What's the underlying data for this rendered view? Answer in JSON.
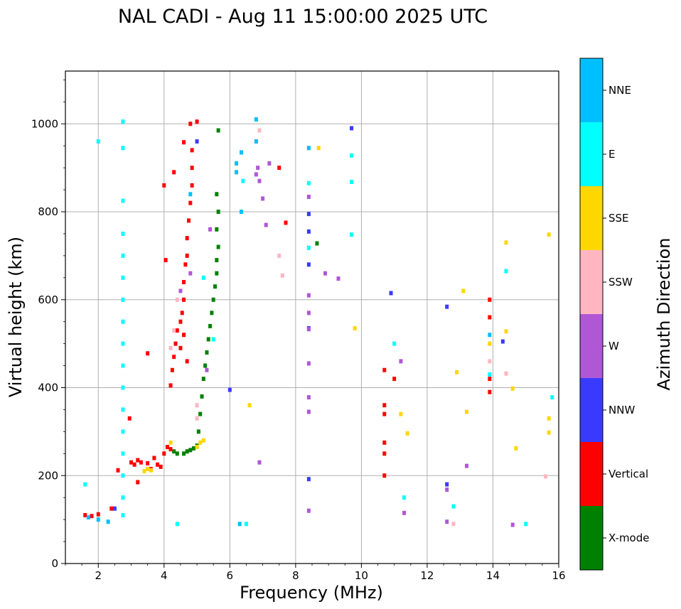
{
  "chart_data": {
    "type": "scatter",
    "title": "NAL CADI - Aug 11 15:00:00 2025 UTC",
    "xlabel": "Frequency (MHz)",
    "ylabel": "Virtual height (km)",
    "xlim": [
      1,
      16
    ],
    "ylim": [
      0,
      1120
    ],
    "xticks": [
      "2",
      "4",
      "6",
      "8",
      "10",
      "12",
      "14",
      "16"
    ],
    "xtick_values": [
      2,
      4,
      6,
      8,
      10,
      12,
      14,
      16
    ],
    "yticks": [
      "0",
      "200",
      "400",
      "600",
      "800",
      "1000"
    ],
    "ytick_values": [
      0,
      200,
      400,
      600,
      800,
      1000
    ],
    "grid": true,
    "colorbar": {
      "label": "Azimuth Direction",
      "categories": [
        {
          "name": "X-mode",
          "color": "#008000"
        },
        {
          "name": "Vertical",
          "color": "#ff0000"
        },
        {
          "name": "NNW",
          "color": "#3a3aff"
        },
        {
          "name": "W",
          "color": "#b057d6"
        },
        {
          "name": "SSW",
          "color": "#ffb6c1"
        },
        {
          "name": "SSE",
          "color": "#ffd700"
        },
        {
          "name": "E",
          "color": "#00ffff"
        },
        {
          "name": "NNE",
          "color": "#00bfff"
        }
      ]
    },
    "series": [
      {
        "name": "X-mode",
        "points": [
          [
            4.6,
            250
          ],
          [
            4.7,
            255
          ],
          [
            4.8,
            258
          ],
          [
            4.9,
            262
          ],
          [
            5.0,
            268
          ],
          [
            5.05,
            300
          ],
          [
            5.1,
            340
          ],
          [
            5.15,
            380
          ],
          [
            5.2,
            420
          ],
          [
            5.25,
            450
          ],
          [
            5.3,
            480
          ],
          [
            5.35,
            510
          ],
          [
            5.4,
            540
          ],
          [
            5.45,
            570
          ],
          [
            5.5,
            600
          ],
          [
            5.55,
            630
          ],
          [
            5.6,
            660
          ],
          [
            5.6,
            690
          ],
          [
            5.65,
            720
          ],
          [
            5.6,
            760
          ],
          [
            5.65,
            800
          ],
          [
            5.6,
            840
          ],
          [
            5.65,
            985
          ],
          [
            8.65,
            728
          ],
          [
            4.3,
            255
          ],
          [
            4.4,
            250
          ]
        ]
      },
      {
        "name": "Vertical",
        "points": [
          [
            1.6,
            110
          ],
          [
            1.8,
            108
          ],
          [
            2.0,
            112
          ],
          [
            2.4,
            125
          ],
          [
            2.6,
            212
          ],
          [
            3.0,
            230
          ],
          [
            3.1,
            225
          ],
          [
            3.2,
            235
          ],
          [
            3.3,
            230
          ],
          [
            3.5,
            228
          ],
          [
            3.6,
            215
          ],
          [
            3.7,
            240
          ],
          [
            3.8,
            225
          ],
          [
            3.9,
            220
          ],
          [
            4.0,
            250
          ],
          [
            4.1,
            265
          ],
          [
            4.2,
            260
          ],
          [
            4.2,
            405
          ],
          [
            4.25,
            440
          ],
          [
            4.3,
            470
          ],
          [
            4.35,
            500
          ],
          [
            4.4,
            530
          ],
          [
            4.5,
            550
          ],
          [
            4.55,
            570
          ],
          [
            4.6,
            600
          ],
          [
            4.6,
            640
          ],
          [
            4.65,
            680
          ],
          [
            4.7,
            700
          ],
          [
            4.7,
            740
          ],
          [
            4.75,
            780
          ],
          [
            4.8,
            820
          ],
          [
            4.85,
            860
          ],
          [
            4.85,
            900
          ],
          [
            4.85,
            940
          ],
          [
            4.8,
            1000
          ],
          [
            4.7,
            460
          ],
          [
            4.5,
            490
          ],
          [
            4.6,
            520
          ],
          [
            3.5,
            478
          ],
          [
            3.2,
            185
          ],
          [
            2.95,
            330
          ],
          [
            4.05,
            690
          ],
          [
            4.0,
            860
          ],
          [
            4.3,
            890
          ],
          [
            7.5,
            900
          ],
          [
            7.7,
            775
          ],
          [
            10.7,
            200
          ],
          [
            10.7,
            250
          ],
          [
            10.7,
            275
          ],
          [
            10.7,
            340
          ],
          [
            10.7,
            360
          ],
          [
            10.7,
            440
          ],
          [
            11.0,
            420
          ],
          [
            13.9,
            390
          ],
          [
            13.9,
            420
          ],
          [
            13.9,
            560
          ],
          [
            13.9,
            600
          ],
          [
            5.0,
            1005
          ],
          [
            4.6,
            958
          ]
        ]
      },
      {
        "name": "NNW",
        "points": [
          [
            8.4,
            795
          ],
          [
            8.4,
            755
          ],
          [
            8.4,
            680
          ],
          [
            8.4,
            535
          ],
          [
            8.4,
            192
          ],
          [
            12.6,
            180
          ],
          [
            12.6,
            584
          ],
          [
            14.3,
            505
          ],
          [
            5.0,
            960
          ],
          [
            10.9,
            615
          ],
          [
            9.7,
            990
          ],
          [
            6.0,
            395
          ],
          [
            2.5,
            125
          ]
        ]
      },
      {
        "name": "W",
        "points": [
          [
            6.8,
            885
          ],
          [
            6.85,
            900
          ],
          [
            6.9,
            870
          ],
          [
            7.0,
            830
          ],
          [
            7.1,
            770
          ],
          [
            7.2,
            910
          ],
          [
            8.4,
            834
          ],
          [
            8.4,
            610
          ],
          [
            8.4,
            570
          ],
          [
            8.4,
            533
          ],
          [
            8.4,
            455
          ],
          [
            8.4,
            378
          ],
          [
            8.4,
            345
          ],
          [
            8.4,
            120
          ],
          [
            8.9,
            660
          ],
          [
            9.3,
            648
          ],
          [
            11.3,
            115
          ],
          [
            12.6,
            95
          ],
          [
            12.6,
            168
          ],
          [
            13.2,
            222
          ],
          [
            6.9,
            230
          ],
          [
            5.4,
            760
          ],
          [
            4.8,
            660
          ],
          [
            4.5,
            620
          ],
          [
            5.3,
            440
          ],
          [
            11.2,
            460
          ],
          [
            14.6,
            88
          ]
        ]
      },
      {
        "name": "SSW",
        "points": [
          [
            4.2,
            490
          ],
          [
            4.3,
            530
          ],
          [
            4.4,
            600
          ],
          [
            5.0,
            360
          ],
          [
            5.0,
            330
          ],
          [
            7.6,
            655
          ],
          [
            7.5,
            700
          ],
          [
            12.8,
            90
          ],
          [
            14.4,
            432
          ],
          [
            15.6,
            198
          ],
          [
            13.9,
            460
          ],
          [
            6.8,
            960
          ],
          [
            6.9,
            985
          ]
        ]
      },
      {
        "name": "SSE",
        "points": [
          [
            3.4,
            210
          ],
          [
            3.5,
            215
          ],
          [
            3.6,
            212
          ],
          [
            4.2,
            275
          ],
          [
            5.0,
            265
          ],
          [
            5.1,
            275
          ],
          [
            5.2,
            280
          ],
          [
            8.7,
            945
          ],
          [
            9.8,
            535
          ],
          [
            13.1,
            620
          ],
          [
            13.2,
            345
          ],
          [
            12.9,
            435
          ],
          [
            14.4,
            730
          ],
          [
            14.4,
            528
          ],
          [
            14.6,
            398
          ],
          [
            14.7,
            262
          ],
          [
            15.7,
            748
          ],
          [
            15.7,
            330
          ],
          [
            15.7,
            298
          ],
          [
            11.2,
            340
          ],
          [
            11.4,
            296
          ],
          [
            6.6,
            360
          ],
          [
            13.9,
            500
          ]
        ]
      },
      {
        "name": "E",
        "points": [
          [
            2.75,
            1005
          ],
          [
            2.75,
            945
          ],
          [
            2.75,
            825
          ],
          [
            2.75,
            750
          ],
          [
            2.75,
            700
          ],
          [
            2.75,
            650
          ],
          [
            2.75,
            600
          ],
          [
            2.75,
            550
          ],
          [
            2.75,
            500
          ],
          [
            2.75,
            450
          ],
          [
            2.75,
            400
          ],
          [
            2.75,
            350
          ],
          [
            2.75,
            300
          ],
          [
            2.75,
            250
          ],
          [
            2.75,
            200
          ],
          [
            2.75,
            150
          ],
          [
            2.75,
            110
          ],
          [
            2.0,
            960
          ],
          [
            1.6,
            180
          ],
          [
            5.2,
            650
          ],
          [
            5.5,
            510
          ],
          [
            6.4,
            870
          ],
          [
            6.5,
            90
          ],
          [
            8.4,
            865
          ],
          [
            8.4,
            718
          ],
          [
            9.7,
            928
          ],
          [
            9.7,
            868
          ],
          [
            9.7,
            748
          ],
          [
            11.3,
            150
          ],
          [
            12.8,
            130
          ],
          [
            14.4,
            665
          ],
          [
            15.0,
            90
          ],
          [
            15.8,
            378
          ],
          [
            4.4,
            90
          ],
          [
            11.0,
            500
          ],
          [
            13.9,
            430
          ]
        ]
      },
      {
        "name": "NNE",
        "points": [
          [
            6.2,
            890
          ],
          [
            6.2,
            910
          ],
          [
            6.35,
            935
          ],
          [
            6.35,
            800
          ],
          [
            6.8,
            960
          ],
          [
            6.8,
            1010
          ],
          [
            8.4,
            945
          ],
          [
            6.3,
            90
          ],
          [
            2.3,
            95
          ],
          [
            1.7,
            105
          ],
          [
            2.0,
            100
          ],
          [
            4.8,
            840
          ],
          [
            13.9,
            520
          ]
        ]
      }
    ]
  }
}
